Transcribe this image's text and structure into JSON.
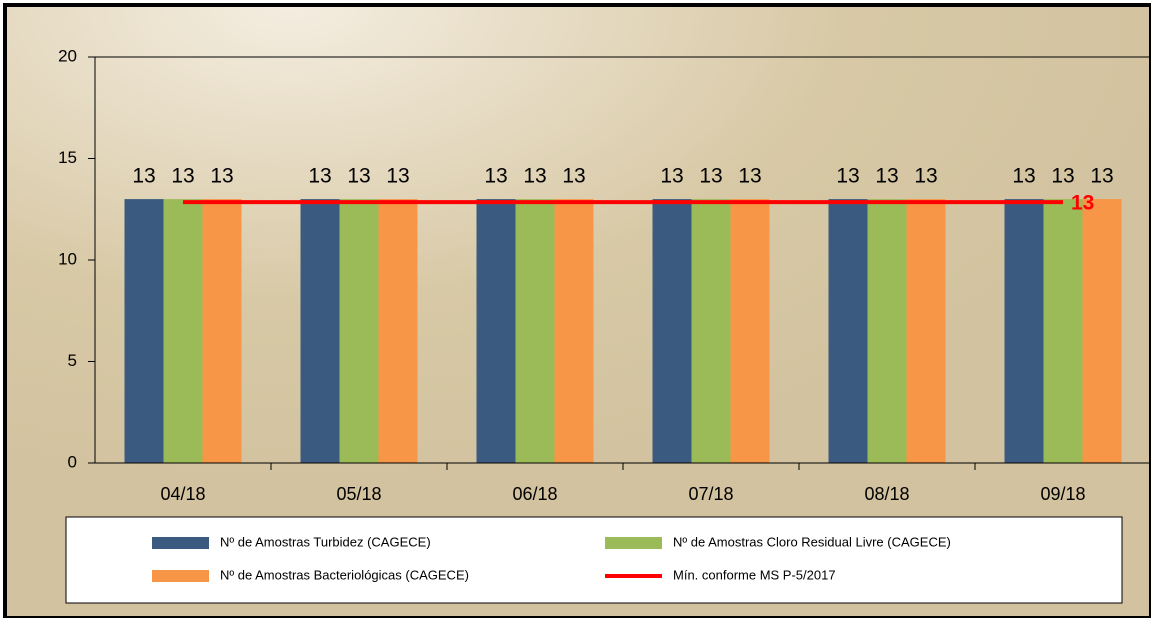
{
  "chart_data": {
    "type": "bar",
    "categories": [
      "04/18",
      "05/18",
      "06/18",
      "07/18",
      "08/18",
      "09/18"
    ],
    "series": [
      {
        "name": "Nº de Amostras Turbidez (CAGECE)",
        "color": "#3b5a80",
        "values": [
          13,
          13,
          13,
          13,
          13,
          13
        ]
      },
      {
        "name": "Nº de Amostras Cloro Residual Livre (CAGECE)",
        "color": "#9bbb59",
        "values": [
          13,
          13,
          13,
          13,
          13,
          13
        ]
      },
      {
        "name": "Nº de Amostras Bacteriológicas (CAGECE)",
        "color": "#f79646",
        "values": [
          13,
          13,
          13,
          13,
          13,
          13
        ]
      },
      {
        "name": "Mín. conforme MS P-5/2017",
        "color": "#ff0000",
        "type": "line",
        "values": [
          13,
          13,
          13,
          13,
          13,
          13
        ]
      }
    ],
    "ylim": [
      0,
      20
    ],
    "yticks": [
      0,
      5,
      10,
      15,
      20
    ]
  }
}
